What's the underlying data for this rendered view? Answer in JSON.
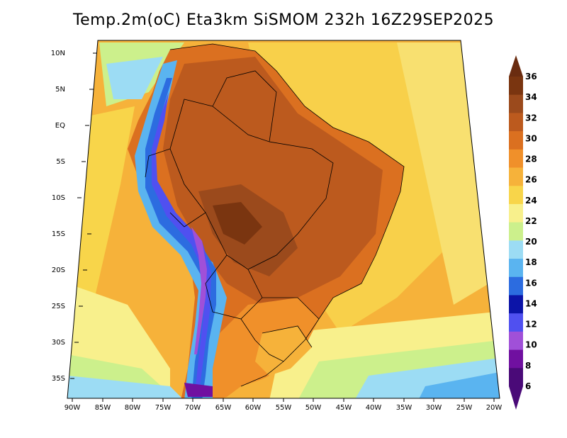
{
  "title": "Temp.2m(oC) Eta3km SiSMOM 232h 16Z29SEP2025",
  "axes": {
    "lat_ticks": [
      "10N",
      "5N",
      "EQ",
      "5S",
      "10S",
      "15S",
      "20S",
      "25S",
      "30S",
      "35S"
    ],
    "lon_ticks": [
      "90W",
      "85W",
      "80W",
      "75W",
      "70W",
      "65W",
      "60W",
      "55W",
      "50W",
      "45W",
      "40W",
      "35W",
      "30W",
      "25W",
      "20W"
    ]
  },
  "colorbar": {
    "labels": [
      "36",
      "34",
      "32",
      "30",
      "28",
      "26",
      "24",
      "22",
      "20",
      "18",
      "16",
      "14",
      "12",
      "10",
      "8",
      "6"
    ],
    "colors": [
      "#7a3510",
      "#9b4a1c",
      "#bc5a1e",
      "#db7020",
      "#f0902a",
      "#f6b23a",
      "#f8d54a",
      "#f8f08c",
      "#ccf08c",
      "#9cdcf4",
      "#5ab4f0",
      "#2c6ce0",
      "#0c14a8",
      "#5050f0",
      "#a050d8",
      "#7010a0",
      "#4a0a78"
    ],
    "top_arrow_color": "#6a2c10",
    "bottom_arrow_color": "#4a0a78"
  },
  "palette": {
    "ocean_warm": "#f8c84a",
    "ocean_hot": "#f0a030",
    "land_hot": "#c0581c",
    "land_very_hot": "#8a3c14",
    "andes_cold": "#5050e0",
    "andes_very_cold": "#7010a0",
    "south_cool": "#9cdcf4"
  }
}
